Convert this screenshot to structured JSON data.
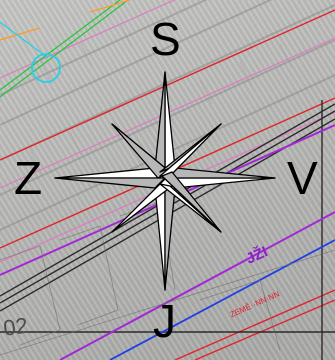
{
  "compass": {
    "north": "S",
    "west": "Z",
    "east": "V",
    "south": "J"
  },
  "map_labels": {
    "street_name": "JŽI",
    "small_red_text": "ZEMĚ··NN·NN",
    "parcel_number": "02"
  }
}
